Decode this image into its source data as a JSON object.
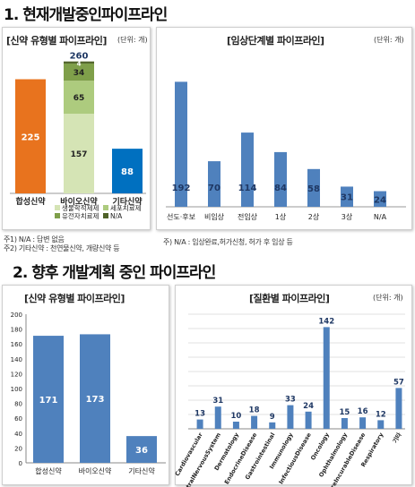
{
  "sections": {
    "current_title": "1. 현재개발중인파이프라인",
    "future_title": "2. 향후 개발계획 중인 파이프라인"
  },
  "notes": {
    "note1": "주1) N/A : 답변 없음",
    "note2": "주2) 기타신약 : 천연물신약, 개량신약 등",
    "note3": "주) N/A : 임상완료,허가신청, 허가 후 임상 등"
  },
  "colors": {
    "orange": "#E8731E",
    "bio_light": "#D5E4B5",
    "bio_mid": "#ADCB7E",
    "bio_dark": "#7F9F4A",
    "bio_top": "#4F6228",
    "blue_dark": "#0070C0",
    "blue": "#4F81BD"
  },
  "chart_data": [
    {
      "type": "bar",
      "title": "[신약 유형별 파이프라인]",
      "unit": "(단위: 개)",
      "categories": [
        "합성신약",
        "바이오신약",
        "기타신약"
      ],
      "series": [
        {
          "name": "합성신약",
          "values": [
            225,
            null,
            null
          ]
        },
        {
          "name": "생물학적제제",
          "values": [
            null,
            157,
            null
          ]
        },
        {
          "name": "세포치료제",
          "values": [
            null,
            65,
            null
          ]
        },
        {
          "name": "유전자치료제",
          "values": [
            null,
            34,
            null
          ]
        },
        {
          "name": "N/A",
          "values": [
            null,
            4,
            null
          ]
        },
        {
          "name": "기타신약",
          "values": [
            null,
            null,
            88
          ]
        }
      ],
      "totals": [
        225,
        260,
        88
      ],
      "ylim": [
        0,
        270
      ],
      "legend_position": "bottom"
    },
    {
      "type": "bar",
      "title": "[임상단계별 파이프라인]",
      "unit": "(단위: 개)",
      "categories": [
        "선도·후보",
        "비임상",
        "전임상",
        "1상",
        "2상",
        "3상",
        "N/A"
      ],
      "values": [
        192,
        70,
        114,
        84,
        58,
        31,
        24
      ],
      "ylim": [
        0,
        220
      ]
    },
    {
      "type": "bar",
      "title": "[신약 유형별 파이프라인]",
      "categories": [
        "합성신약",
        "바이오신약",
        "기타신약"
      ],
      "values": [
        171,
        173,
        36
      ],
      "ylim": [
        0,
        200
      ],
      "yticks": [
        0,
        20,
        40,
        60,
        80,
        100,
        120,
        140,
        160,
        180,
        200
      ],
      "grid": false
    },
    {
      "type": "bar",
      "title": "[질환별 파이프라인]",
      "unit": "(단위: 개)",
      "categories": [
        "Cardiovascular",
        "CentralNervousSystem",
        "Dermatology",
        "EndocrineDisease",
        "Gastrointestinal",
        "Immunology",
        "InfectiousDisease",
        "Oncology",
        "Ophthalmology",
        "RareIncurableDisease",
        "Respiratory",
        "기타"
      ],
      "values": [
        13,
        31,
        10,
        18,
        9,
        33,
        24,
        142,
        15,
        16,
        12,
        57
      ],
      "ylim": [
        0,
        160
      ],
      "grid": true
    }
  ]
}
